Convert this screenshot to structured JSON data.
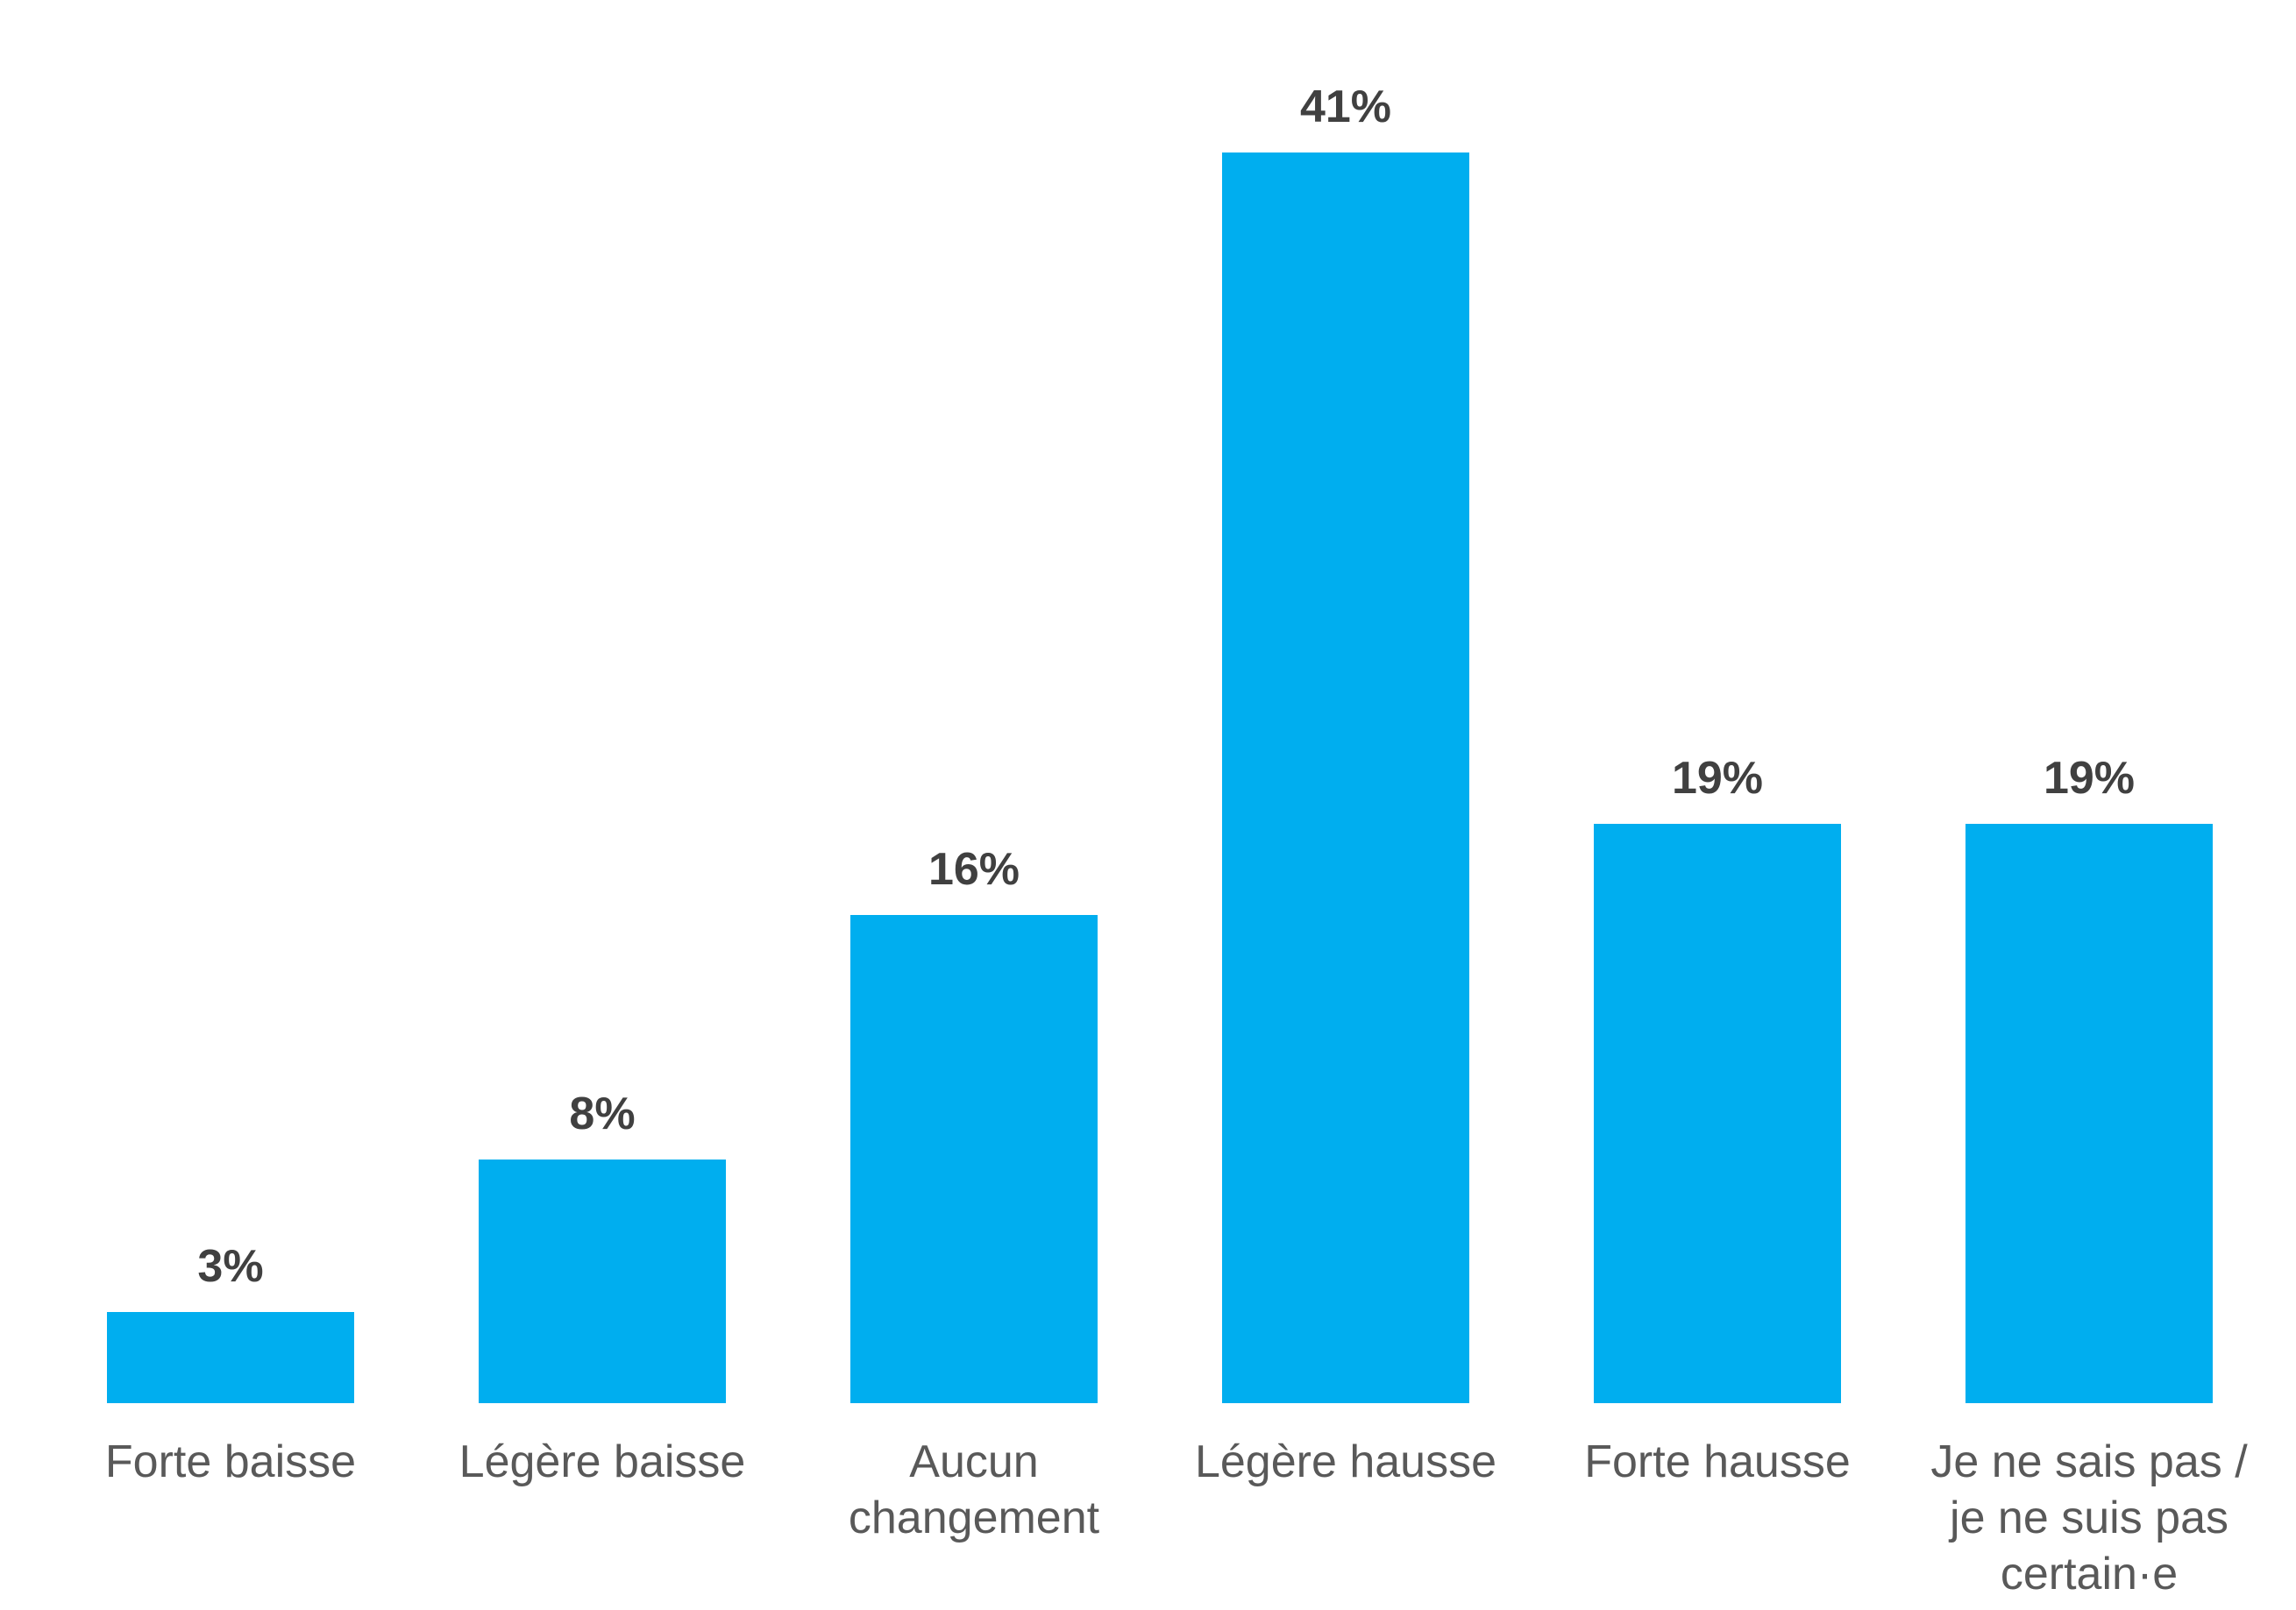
{
  "chart_data": {
    "type": "bar",
    "categories": [
      "Forte baisse",
      "Légère baisse",
      "Aucun changement",
      "Légère hausse",
      "Forte hausse",
      "Je ne sais pas / je ne suis pas certain·e"
    ],
    "values": [
      3,
      8,
      16,
      41,
      19,
      19
    ],
    "value_labels": [
      "3%",
      "8%",
      "16%",
      "41%",
      "19%",
      "19%"
    ],
    "color": "#00aeef"
  }
}
